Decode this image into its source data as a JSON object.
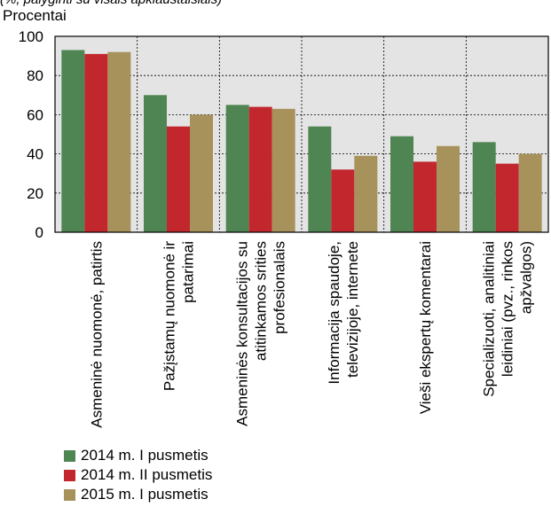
{
  "note": "(%, palyginti su visais apklaustaisiais)",
  "chart_data": {
    "type": "bar",
    "title": "",
    "ylabel": "Procentai",
    "xlabel": "",
    "ylim": [
      0,
      100
    ],
    "yticks": [
      "0",
      "20",
      "40",
      "60",
      "80",
      "100"
    ],
    "grid": true,
    "legend_position": "bottom-left",
    "categories": [
      [
        "Asmeninė nuomonė, patirtis"
      ],
      [
        "Pažįstamų nuomonė ir",
        "patarimai"
      ],
      [
        "Asmeninės konsultacijos su",
        "atitinkamos srities",
        "profesionalais"
      ],
      [
        "Informacija spaudoje,",
        "televizijoje, internete"
      ],
      [
        "Vieši ekspertų komentarai"
      ],
      [
        "Specializuoti, analitiniai",
        "leidiniai (pvz., rinkos",
        "apžvalgos)"
      ]
    ],
    "series": [
      {
        "name": "2014 m. I pusmetis",
        "color": "#4f8552",
        "values": [
          93,
          70,
          65,
          54,
          49,
          46
        ]
      },
      {
        "name": "2014 m. II pusmetis",
        "color": "#c1272d",
        "values": [
          91,
          54,
          64,
          32,
          36,
          35
        ]
      },
      {
        "name": "2015 m. I pusmetis",
        "color": "#a8925c",
        "values": [
          92,
          60,
          63,
          39,
          44,
          40
        ]
      }
    ]
  }
}
